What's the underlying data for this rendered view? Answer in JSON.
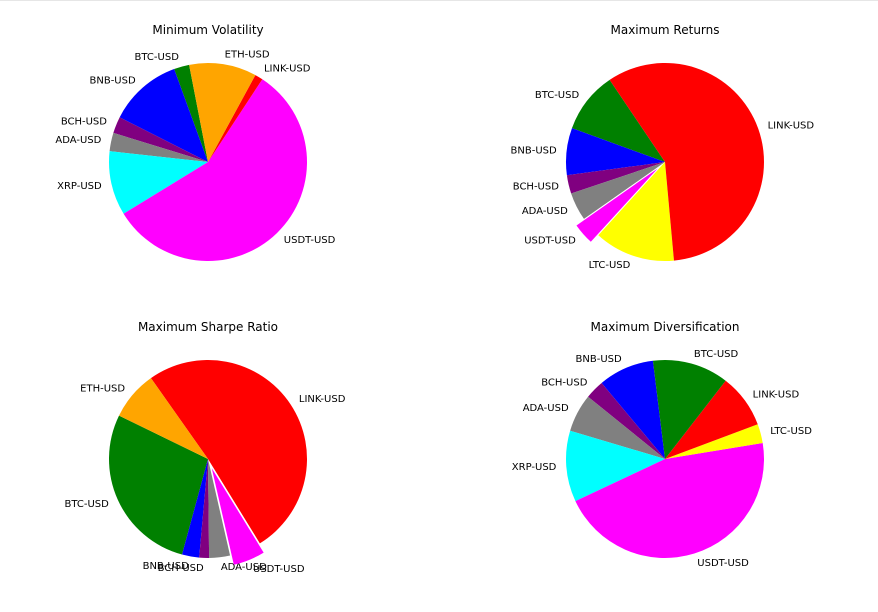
{
  "chart_data": [
    {
      "type": "pie",
      "title": "Minimum Volatility",
      "slices": [
        {
          "label": "BTC-USD",
          "value": 2.5,
          "color": "#008000"
        },
        {
          "label": "BNB-USD",
          "value": 12.0,
          "color": "#0000ff"
        },
        {
          "label": "BCH-USD",
          "value": 2.7,
          "color": "#800080"
        },
        {
          "label": "ADA-USD",
          "value": 3.0,
          "color": "#808080"
        },
        {
          "label": "XRP-USD",
          "value": 10.5,
          "color": "#00ffff"
        },
        {
          "label": "USDT-USD",
          "value": 57.0,
          "color": "#ff00ff"
        },
        {
          "label": "LINK-USD",
          "value": 1.3,
          "color": "#ff0000"
        },
        {
          "label": "ETH-USD",
          "value": 11.0,
          "color": "#ffa500"
        }
      ]
    },
    {
      "type": "pie",
      "title": "Maximum Returns",
      "slices": [
        {
          "label": "BTC-USD",
          "value": 10.0,
          "color": "#008000"
        },
        {
          "label": "BNB-USD",
          "value": 7.7,
          "color": "#0000ff"
        },
        {
          "label": "BCH-USD",
          "value": 3.0,
          "color": "#800080"
        },
        {
          "label": "ADA-USD",
          "value": 4.6,
          "color": "#808080"
        },
        {
          "label": "USDT-USD",
          "value": 3.5,
          "color": "#ff00ff",
          "explode": true
        },
        {
          "label": "LTC-USD",
          "value": 13.2,
          "color": "#ffff00"
        },
        {
          "label": "LINK-USD",
          "value": 58.0,
          "color": "#ff0000"
        }
      ]
    },
    {
      "type": "pie",
      "title": "Maximum Sharpe Ratio",
      "slices": [
        {
          "label": "BTC-USD",
          "value": 28.0,
          "color": "#008000"
        },
        {
          "label": "BNB-USD",
          "value": 2.8,
          "color": "#0000ff"
        },
        {
          "label": "BCH-USD",
          "value": 1.6,
          "color": "#800080"
        },
        {
          "label": "ADA-USD",
          "value": 3.4,
          "color": "#808080"
        },
        {
          "label": "USDT-USD",
          "value": 5.2,
          "color": "#ff00ff",
          "explode": true
        },
        {
          "label": "LINK-USD",
          "value": 51.0,
          "color": "#ff0000"
        },
        {
          "label": "ETH-USD",
          "value": 8.0,
          "color": "#ffa500"
        }
      ]
    },
    {
      "type": "pie",
      "title": "Maximum Diversification",
      "slices": [
        {
          "label": "BNB-USD",
          "value": 8.8,
          "color": "#0000ff"
        },
        {
          "label": "BCH-USD",
          "value": 3.0,
          "color": "#800080"
        },
        {
          "label": "ADA-USD",
          "value": 6.0,
          "color": "#808080"
        },
        {
          "label": "XRP-USD",
          "value": 11.2,
          "color": "#00ffff"
        },
        {
          "label": "USDT-USD",
          "value": 44.0,
          "color": "#ff00ff"
        },
        {
          "label": "LTC-USD",
          "value": 3.0,
          "color": "#ffff00"
        },
        {
          "label": "LINK-USD",
          "value": 8.5,
          "color": "#ff0000"
        },
        {
          "label": "BTC-USD",
          "value": 12.0,
          "color": "#008000"
        }
      ]
    }
  ]
}
